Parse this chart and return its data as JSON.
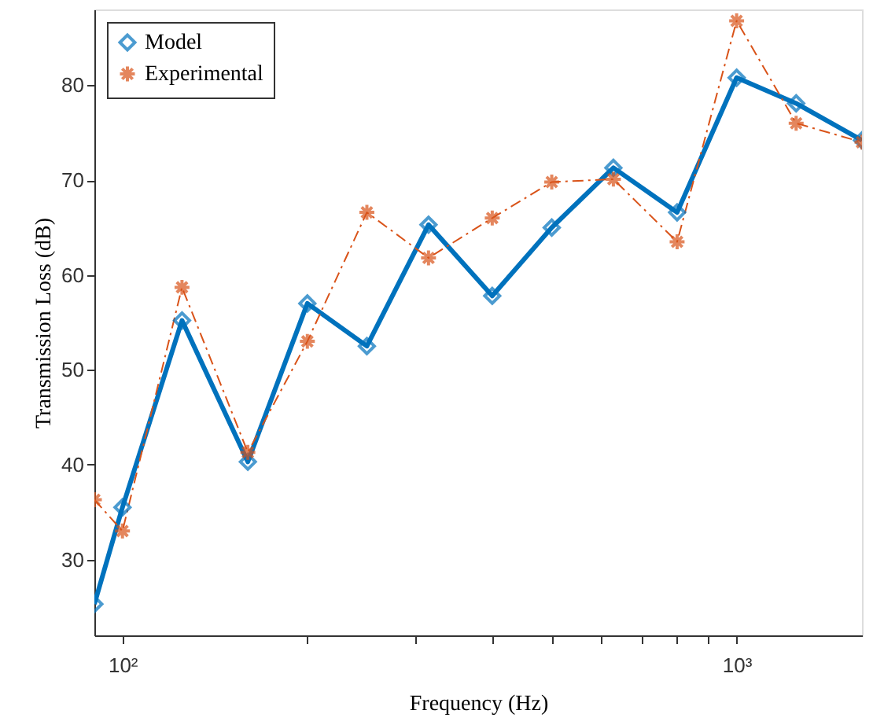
{
  "chart_data": {
    "type": "line",
    "xlabel": "Frequency (Hz)",
    "ylabel": "Transmission Loss (dB)",
    "x": [
      90,
      100,
      125,
      160,
      200,
      250,
      315,
      400,
      500,
      630,
      800,
      1000,
      1250,
      1600
    ],
    "series": [
      {
        "name": "Model",
        "color": "#0072bd",
        "marker": "diamond",
        "line_style": "solid",
        "values": [
          25.3,
          35.5,
          55.2,
          40.3,
          57,
          52.5,
          65.3,
          57.8,
          65,
          71.3,
          66.6,
          80.8,
          78.1,
          74.2
        ]
      },
      {
        "name": "Experimental",
        "color": "#d95319",
        "marker": "cross",
        "line_style": "dashed",
        "values": [
          36.3,
          33,
          58.7,
          41.3,
          53,
          66.6,
          61.8,
          66,
          69.8,
          70.1,
          63.5,
          86.8,
          76,
          74
        ]
      }
    ],
    "log": "x",
    "xlim": [
      90,
      1600
    ],
    "ylim": [
      22,
      88
    ],
    "xticks": [
      {
        "value": 100,
        "label": "10²"
      },
      {
        "value": 200,
        "label": null
      },
      {
        "value": 300,
        "label": null
      },
      {
        "value": 400,
        "label": null
      },
      {
        "value": 500,
        "label": null
      },
      {
        "value": 600,
        "label": null
      },
      {
        "value": 700,
        "label": null
      },
      {
        "value": 800,
        "label": null
      },
      {
        "value": 900,
        "label": null
      },
      {
        "value": 1000,
        "label": "10³"
      }
    ],
    "yticks": [
      30,
      40,
      50,
      60,
      70,
      80
    ],
    "grid": false,
    "legend": "top left"
  }
}
